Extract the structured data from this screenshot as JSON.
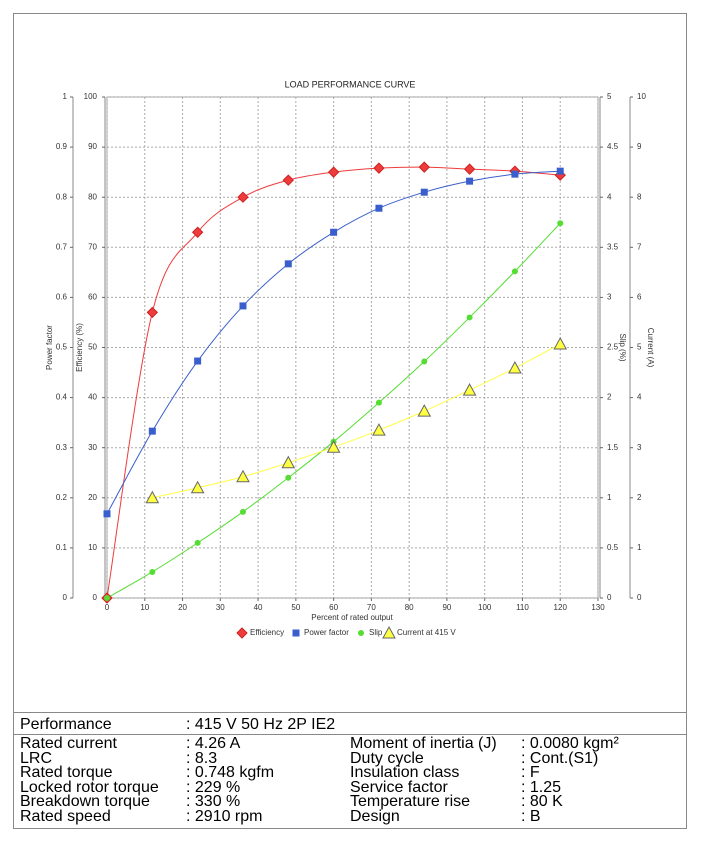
{
  "chart_data": {
    "type": "line",
    "title": "LOAD PERFORMANCE CURVE",
    "x_label": "Percent of rated output",
    "xlim": [
      0,
      130
    ],
    "xticks": [
      0,
      10,
      20,
      30,
      40,
      50,
      60,
      70,
      80,
      90,
      100,
      110,
      120,
      130
    ],
    "grid": true,
    "x": [
      0,
      12,
      24,
      36,
      48,
      60,
      72,
      84,
      96,
      108,
      120
    ],
    "axes": [
      {
        "label": "Power factor",
        "side": "left",
        "lim": [
          0,
          1
        ],
        "ticks": [
          0,
          0.1,
          0.2,
          0.3,
          0.4,
          0.5,
          0.6,
          0.7,
          0.8,
          0.9,
          1
        ]
      },
      {
        "label": "Efficiency (%)",
        "side": "left",
        "lim": [
          0,
          100
        ],
        "ticks": [
          0,
          10,
          20,
          30,
          40,
          50,
          60,
          70,
          80,
          90,
          100
        ]
      },
      {
        "label": "Slip (%)",
        "side": "right",
        "lim": [
          0,
          5
        ],
        "ticks": [
          0,
          0.5,
          1,
          1.5,
          2,
          2.5,
          3,
          3.5,
          4,
          4.5,
          5
        ]
      },
      {
        "label": "Current (A)",
        "side": "right",
        "lim": [
          0,
          10
        ],
        "ticks": [
          0,
          1,
          2,
          3,
          4,
          5,
          6,
          7,
          8,
          9,
          10
        ]
      }
    ],
    "series": [
      {
        "name": "Efficiency",
        "axis": 1,
        "marker": "diamond",
        "color": "#ee3b3b",
        "values": [
          0,
          57,
          73,
          80,
          83.4,
          85,
          85.8,
          86,
          85.6,
          85.2,
          84.4
        ]
      },
      {
        "name": "Power factor",
        "axis": 0,
        "marker": "square",
        "color": "#3a5fcd",
        "values": [
          0.168,
          0.333,
          0.473,
          0.583,
          0.667,
          0.73,
          0.778,
          0.81,
          0.832,
          0.846,
          0.852
        ]
      },
      {
        "name": "Slip",
        "axis": 2,
        "marker": "circle",
        "color": "#55dd33",
        "values": [
          0,
          0.26,
          0.55,
          0.86,
          1.2,
          1.56,
          1.95,
          2.36,
          2.8,
          3.26,
          3.74
        ]
      },
      {
        "name": "Current at 415 V",
        "axis": 3,
        "marker": "triangle",
        "color": "#ffff44",
        "values": [
          null,
          2.0,
          2.2,
          2.42,
          2.7,
          3.01,
          3.35,
          3.73,
          4.15,
          4.59,
          5.07
        ]
      }
    ]
  },
  "table": {
    "header": [
      "Performance",
      ": 415 V 50 Hz 2P IE2"
    ],
    "rows": [
      [
        "Rated current",
        ": 4.26 A",
        "Moment of inertia (J)",
        ": 0.0080 kgm²"
      ],
      [
        "LRC",
        ": 8.3",
        "Duty cycle",
        ": Cont.(S1)"
      ],
      [
        "Rated torque",
        ": 0.748 kgfm",
        "Insulation class",
        ": F"
      ],
      [
        "Locked rotor torque",
        ": 229 %",
        "Service factor",
        ": 1.25"
      ],
      [
        "Breakdown torque",
        ": 330 %",
        "Temperature rise",
        ": 80 K"
      ],
      [
        "Rated speed",
        ": 2910 rpm",
        "Design",
        ": B"
      ]
    ]
  }
}
